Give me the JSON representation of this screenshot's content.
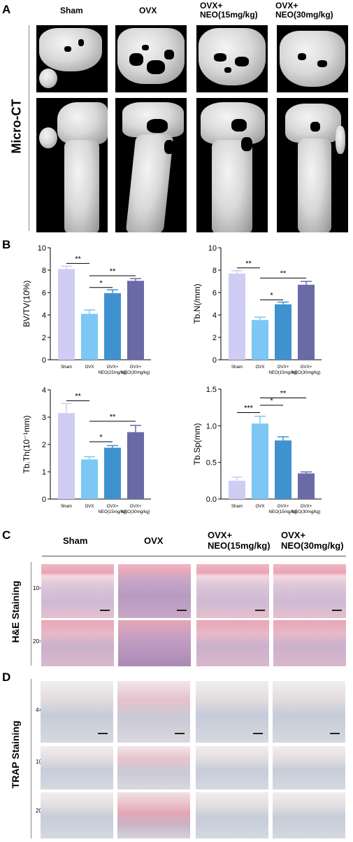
{
  "panels": {
    "A": "A",
    "B": "B",
    "C": "C",
    "D": "D"
  },
  "groups": [
    "Sham",
    "OVX",
    "OVX+\nNEO(15mg/kg)",
    "OVX+\nNEO(30mg/kg)"
  ],
  "microct": {
    "row_label": "Micro-CT"
  },
  "histology": {
    "he_label": "H&E Staining",
    "trap_label": "TRAP Staining",
    "he_mags": [
      "10×",
      "20×"
    ],
    "trap_mags": [
      "4×",
      "10×",
      "20×"
    ]
  },
  "colors": {
    "sham": "#cfcdf4",
    "ovx": "#7cc7f4",
    "neo15": "#3f92cf",
    "neo30": "#6a6aa6"
  },
  "chart_data": [
    {
      "type": "bar",
      "ylabel": "BV/TV(10%)",
      "categories": [
        "Sham",
        "OVX",
        "OVX+\nNEO(15mg/kg)",
        "OVX+\nNEO(30mg/kg)"
      ],
      "values": [
        8.1,
        4.1,
        5.95,
        7.05
      ],
      "errors": [
        0.25,
        0.35,
        0.3,
        0.2
      ],
      "ylim": [
        0,
        10
      ],
      "yticks": [
        "0",
        "2",
        "4",
        "6",
        "8",
        "10"
      ],
      "annotations": [
        {
          "from": 0,
          "to": 1,
          "level": 8.6,
          "text": "**"
        },
        {
          "from": 1,
          "to": 3,
          "level": 7.5,
          "text": "**"
        },
        {
          "from": 1,
          "to": 2,
          "level": 6.45,
          "text": "*"
        }
      ]
    },
    {
      "type": "bar",
      "ylabel": "Tb.N(/mm)",
      "categories": [
        "Sham",
        "OVX",
        "OVX+\nNEO(15mg/kg)",
        "OVX+\nNEO(30mg/kg)"
      ],
      "values": [
        7.7,
        3.55,
        4.95,
        6.7
      ],
      "errors": [
        0.25,
        0.25,
        0.2,
        0.3
      ],
      "ylim": [
        0,
        10
      ],
      "yticks": [
        "0",
        "2",
        "4",
        "6",
        "8",
        "10"
      ],
      "annotations": [
        {
          "from": 0,
          "to": 1,
          "level": 8.2,
          "text": "**"
        },
        {
          "from": 1,
          "to": 3,
          "level": 7.3,
          "text": "**"
        },
        {
          "from": 1,
          "to": 2,
          "level": 5.35,
          "text": "*"
        }
      ]
    },
    {
      "type": "bar",
      "ylabel": "Tb.Th(10⁻¹mm)",
      "categories": [
        "Sham",
        "OVX",
        "OVX+\nNEO(15mg/kg)",
        "OVX+\nNEO(30mg/kg)"
      ],
      "values": [
        3.15,
        1.45,
        1.88,
        2.45
      ],
      "errors": [
        0.35,
        0.1,
        0.08,
        0.25
      ],
      "ylim": [
        0,
        4
      ],
      "yticks": [
        "0",
        "1",
        "2",
        "3",
        "4"
      ],
      "annotations": [
        {
          "from": 0,
          "to": 1,
          "level": 3.6,
          "text": "**"
        },
        {
          "from": 1,
          "to": 3,
          "level": 2.85,
          "text": "**"
        },
        {
          "from": 1,
          "to": 2,
          "level": 2.1,
          "text": "*"
        }
      ]
    },
    {
      "type": "bar",
      "ylabel": "Tb.Sp(mm)",
      "categories": [
        "Sham",
        "OVX",
        "OVX+\nNEO(15mg/kg)",
        "OVX+\nNEO(30mg/kg)"
      ],
      "values": [
        0.25,
        1.03,
        0.8,
        0.35
      ],
      "errors": [
        0.05,
        0.1,
        0.05,
        0.02
      ],
      "ylim": [
        0,
        1.5
      ],
      "yticks": [
        "0.0",
        "0.5",
        "1.0",
        "1.5"
      ],
      "annotations": [
        {
          "from": 0,
          "to": 1,
          "level": 1.18,
          "text": "***"
        },
        {
          "from": 1,
          "to": 2,
          "level": 1.28,
          "text": "*"
        },
        {
          "from": 1,
          "to": 3,
          "level": 1.38,
          "text": "**"
        }
      ]
    }
  ]
}
